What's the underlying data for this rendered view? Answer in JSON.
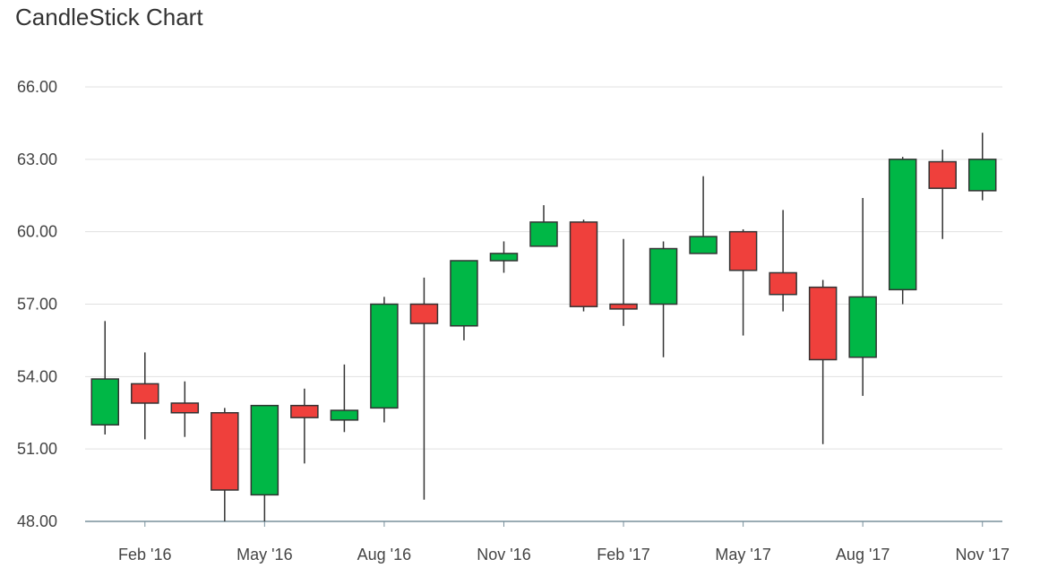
{
  "chart_data": {
    "type": "candlestick",
    "title": "CandleStick Chart",
    "xlabel": "",
    "ylabel": "",
    "ylim": [
      48,
      66
    ],
    "yticks": [
      "48.00",
      "51.00",
      "54.00",
      "57.00",
      "60.00",
      "63.00",
      "66.00"
    ],
    "xticks": [
      "Feb '16",
      "May '16",
      "Aug '16",
      "Nov '16",
      "Feb '17",
      "May '17",
      "Aug '17",
      "Nov '17"
    ],
    "grid": true,
    "colors": {
      "up": "#00b746",
      "down": "#ef403c",
      "wick": "#333333",
      "grid": "#e0e0e0",
      "axis": "#78909c"
    },
    "candles": [
      {
        "x": "Jan '16",
        "open": 52.0,
        "high": 56.3,
        "low": 51.6,
        "close": 53.9
      },
      {
        "x": "Feb '16",
        "open": 53.7,
        "high": 55.0,
        "low": 51.4,
        "close": 52.9
      },
      {
        "x": "Mar '16",
        "open": 52.9,
        "high": 53.8,
        "low": 51.5,
        "close": 52.5
      },
      {
        "x": "Apr '16",
        "open": 52.5,
        "high": 52.7,
        "low": 48.0,
        "close": 49.3
      },
      {
        "x": "May '16",
        "open": 49.1,
        "high": 52.8,
        "low": 48.0,
        "close": 52.8
      },
      {
        "x": "Jun '16",
        "open": 52.8,
        "high": 53.5,
        "low": 50.4,
        "close": 52.3
      },
      {
        "x": "Jul '16",
        "open": 52.2,
        "high": 54.5,
        "low": 51.7,
        "close": 52.6
      },
      {
        "x": "Aug '16",
        "open": 52.7,
        "high": 57.3,
        "low": 52.1,
        "close": 57.0
      },
      {
        "x": "Sep '16",
        "open": 57.0,
        "high": 58.1,
        "low": 48.9,
        "close": 56.2
      },
      {
        "x": "Oct '16",
        "open": 56.1,
        "high": 58.8,
        "low": 55.5,
        "close": 58.8
      },
      {
        "x": "Nov '16",
        "open": 58.8,
        "high": 59.6,
        "low": 58.3,
        "close": 59.1
      },
      {
        "x": "Dec '16",
        "open": 59.4,
        "high": 61.1,
        "low": 59.4,
        "close": 60.4
      },
      {
        "x": "Jan '17",
        "open": 60.4,
        "high": 60.5,
        "low": 56.7,
        "close": 56.9
      },
      {
        "x": "Feb '17",
        "open": 57.0,
        "high": 59.7,
        "low": 56.1,
        "close": 56.8
      },
      {
        "x": "Mar '17",
        "open": 57.0,
        "high": 59.6,
        "low": 54.8,
        "close": 59.3
      },
      {
        "x": "Apr '17",
        "open": 59.1,
        "high": 62.3,
        "low": 59.1,
        "close": 59.8
      },
      {
        "x": "May '17",
        "open": 60.0,
        "high": 60.1,
        "low": 55.7,
        "close": 58.4
      },
      {
        "x": "Jun '17",
        "open": 58.3,
        "high": 60.9,
        "low": 56.7,
        "close": 57.4
      },
      {
        "x": "Jul '17",
        "open": 57.7,
        "high": 58.0,
        "low": 51.2,
        "close": 54.7
      },
      {
        "x": "Aug '17",
        "open": 54.8,
        "high": 61.4,
        "low": 53.2,
        "close": 57.3
      },
      {
        "x": "Sep '17",
        "open": 57.6,
        "high": 63.1,
        "low": 57.0,
        "close": 63.0
      },
      {
        "x": "Oct '17",
        "open": 62.9,
        "high": 63.4,
        "low": 59.7,
        "close": 61.8
      },
      {
        "x": "Nov '17",
        "open": 61.7,
        "high": 64.1,
        "low": 61.3,
        "close": 63.0
      }
    ]
  }
}
